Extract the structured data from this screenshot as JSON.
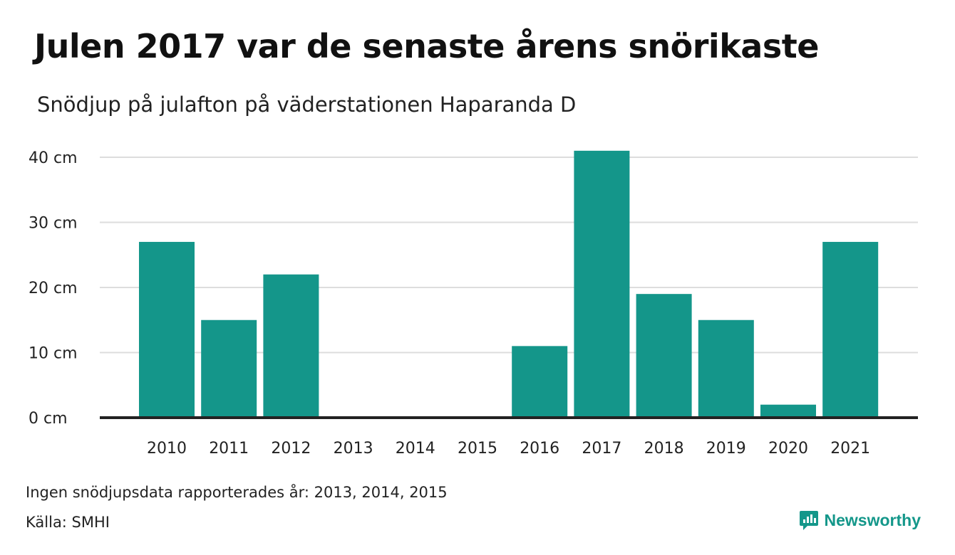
{
  "title": "Julen 2017 var de senaste årens snörikaste",
  "subtitle": "Snödjup på julafton på väderstationen Haparanda D",
  "footnote": "Ingen snödjupsdata rapporterades år: 2013, 2014, 2015",
  "source": "Källa: SMHI",
  "brand": "Newsworthy",
  "colors": {
    "bar": "#14968a",
    "grid": "#dddddd",
    "baseline": "#222222",
    "brand": "#14978a"
  },
  "chart_data": {
    "type": "bar",
    "categories": [
      "2010",
      "2011",
      "2012",
      "2013",
      "2014",
      "2015",
      "2016",
      "2017",
      "2018",
      "2019",
      "2020",
      "2021"
    ],
    "values": [
      27,
      15,
      22,
      null,
      null,
      null,
      11,
      41,
      19,
      15,
      2,
      27
    ],
    "unit": "cm",
    "ylim": [
      0,
      40
    ],
    "yticks": [
      0,
      10,
      20,
      30,
      40
    ],
    "ytick_labels": [
      "0 cm",
      "10 cm",
      "20 cm",
      "30 cm",
      "40 cm"
    ],
    "grid": true
  }
}
